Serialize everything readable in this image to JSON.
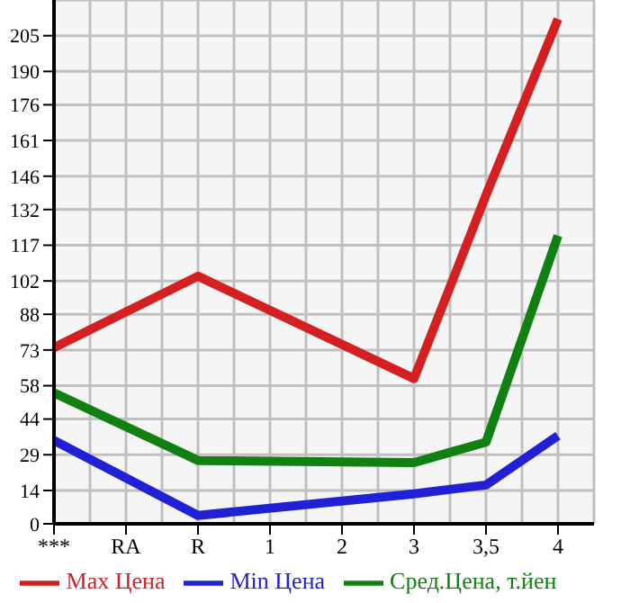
{
  "chart_data": {
    "type": "line",
    "categories": [
      "***",
      "RA",
      "R",
      "1",
      "2",
      "3",
      "3,5",
      "4"
    ],
    "series": [
      {
        "name": "Max Цена",
        "color": "#d42020",
        "values": [
          74,
          null,
          104,
          null,
          null,
          61,
          138,
          212
        ]
      },
      {
        "name": "Min Цена",
        "color": "#2020d4",
        "values": [
          35,
          null,
          3.5,
          null,
          null,
          12.6,
          16.3,
          37
        ]
      },
      {
        "name": "Сред.Цена, т.йен",
        "color": "#108010",
        "values": [
          55,
          null,
          26.6,
          null,
          null,
          25.7,
          34.3,
          121
        ]
      }
    ],
    "ylim": [
      0,
      220
    ],
    "yticks": [
      0,
      14,
      29,
      44,
      58,
      73,
      88,
      102,
      117,
      132,
      146,
      161,
      176,
      190,
      205
    ],
    "grid": true,
    "legend": "bottom",
    "marker": "none",
    "line_style": "solid"
  }
}
